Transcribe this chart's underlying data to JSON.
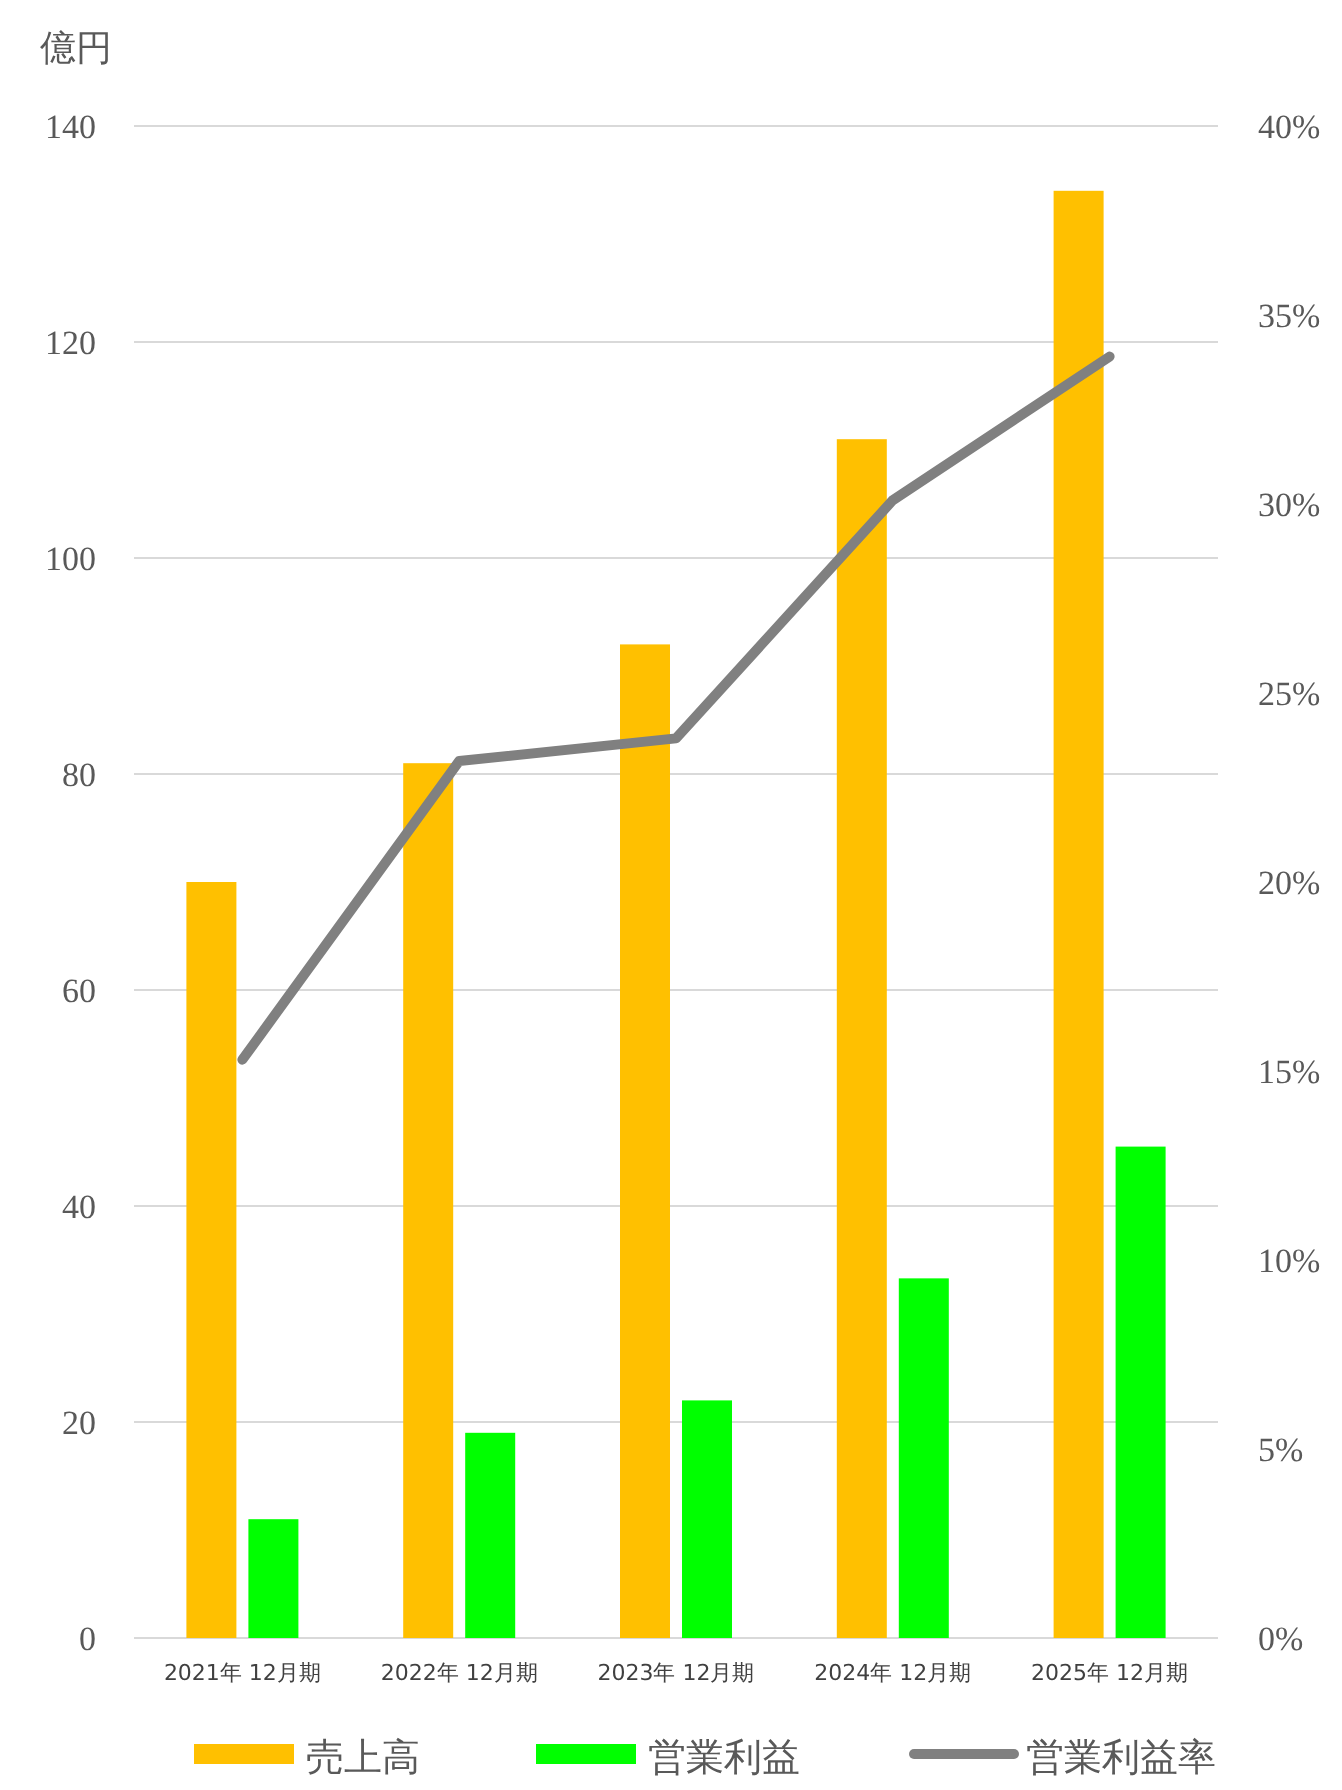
{
  "chart_data": {
    "type": "bar",
    "ylabel": "億円",
    "categories": [
      "2021年 12月期",
      "2022年 12月期",
      "2023年 12月期",
      "2024年 12月期",
      "2025年 12月期"
    ],
    "series": [
      {
        "name": "売上高",
        "color": "#ffc000",
        "values": [
          70,
          81,
          92,
          111,
          134
        ]
      },
      {
        "name": "営業利益",
        "color": "#00ff00",
        "values": [
          11,
          19,
          22,
          33.3,
          45.5
        ]
      },
      {
        "name": "営業利益率",
        "type": "line",
        "axis": "y2",
        "color": "#808080",
        "values": [
          15.3,
          23.2,
          23.8,
          30.1,
          33.9
        ]
      }
    ],
    "ylim": [
      0,
      140
    ],
    "yticks": [
      0,
      20,
      40,
      60,
      80,
      100,
      120,
      140
    ],
    "y2lim": [
      0,
      40
    ],
    "y2ticks": [
      {
        "value": 0,
        "label": "0%"
      },
      {
        "value": 5,
        "label": "5%"
      },
      {
        "value": 10,
        "label": "10%"
      },
      {
        "value": 15,
        "label": "15%"
      },
      {
        "value": 20,
        "label": "20%"
      },
      {
        "value": 25,
        "label": "25%"
      },
      {
        "value": 30,
        "label": "30%"
      },
      {
        "value": 35,
        "label": "35%"
      },
      {
        "value": 40,
        "label": "40%"
      }
    ],
    "grid": "y",
    "legend": "bottom",
    "marker": "none",
    "line_style": "solid"
  }
}
